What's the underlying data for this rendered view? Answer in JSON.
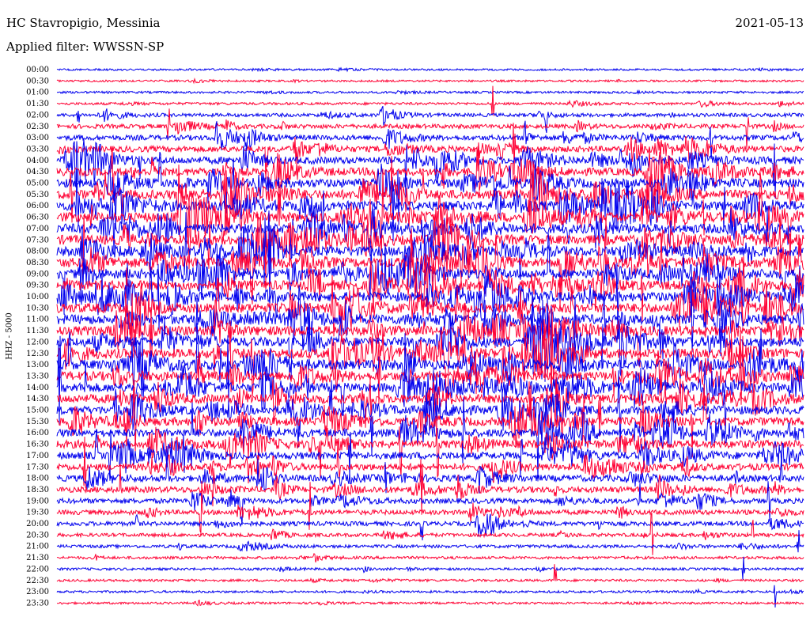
{
  "header": {
    "station": "HC Stavropigio, Messinia",
    "filter": "Applied filter: WWSSN-SP",
    "date": "2021-05-13"
  },
  "chart_data": {
    "type": "line",
    "title": "HC Stavropigio, Messinia",
    "subtitle": "Applied filter: WWSSN-SP",
    "date": "2021-05-13",
    "ylabel": "HHZ - 5000",
    "xlabel": "",
    "grid": false,
    "colors": [
      "#0000ee",
      "#ff0033"
    ],
    "categories": [
      "00:00",
      "00:30",
      "01:00",
      "01:30",
      "02:00",
      "02:30",
      "03:00",
      "03:30",
      "04:00",
      "04:30",
      "05:00",
      "05:30",
      "06:00",
      "06:30",
      "07:00",
      "07:30",
      "08:00",
      "08:30",
      "09:00",
      "09:30",
      "10:00",
      "10:30",
      "11:00",
      "11:30",
      "12:00",
      "12:30",
      "13:00",
      "13:30",
      "14:00",
      "14:30",
      "15:00",
      "15:30",
      "16:00",
      "16:30",
      "17:00",
      "17:30",
      "18:00",
      "18:30",
      "19:00",
      "19:30",
      "20:00",
      "20:30",
      "21:00",
      "21:30",
      "22:00",
      "22:30",
      "23:00",
      "23:30"
    ],
    "activity": [
      0.05,
      0.06,
      0.08,
      0.12,
      0.25,
      0.35,
      0.45,
      0.55,
      0.7,
      0.8,
      0.9,
      0.95,
      1,
      1,
      1,
      1,
      1,
      1,
      1,
      1,
      1,
      1,
      1,
      1,
      1,
      1,
      1,
      0.95,
      0.95,
      0.9,
      0.85,
      0.85,
      0.8,
      0.8,
      0.7,
      0.65,
      0.6,
      0.55,
      0.45,
      0.4,
      0.35,
      0.25,
      0.2,
      0.15,
      0.12,
      0.1,
      0.1,
      0.08
    ]
  }
}
